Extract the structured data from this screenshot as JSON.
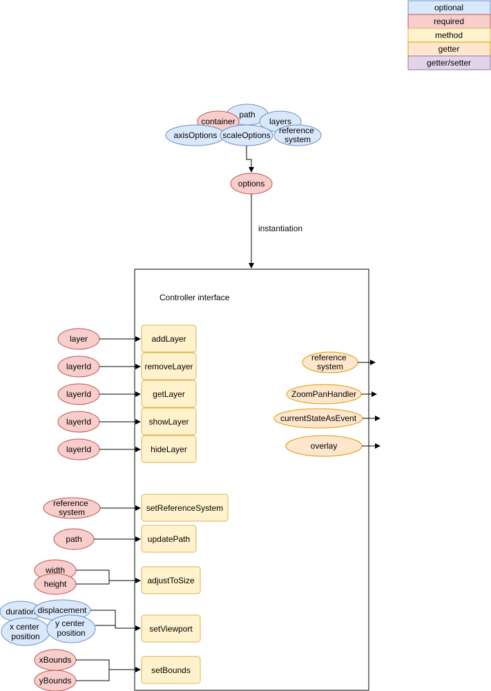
{
  "legend": [
    {
      "label": "optional",
      "kind": "optional"
    },
    {
      "label": "required",
      "kind": "required"
    },
    {
      "label": "method",
      "kind": "method"
    },
    {
      "label": "getter",
      "kind": "getter"
    },
    {
      "label": "getter/setter",
      "kind": "getter_setter"
    }
  ],
  "colors": {
    "optional": {
      "fill": "#dae8fc",
      "stroke": "#6c8ebf"
    },
    "required": {
      "fill": "#f8cecc",
      "stroke": "#b85450"
    },
    "method": {
      "fill": "#fff2cc",
      "stroke": "#d6b656"
    },
    "getter": {
      "fill": "#ffe6cc",
      "stroke": "#d79b00"
    },
    "getter_setter": {
      "fill": "#e1d5e7",
      "stroke": "#9673a6"
    }
  },
  "options_cluster": {
    "items": [
      "path",
      "container",
      "layers",
      "axisOptions",
      "scaleOptions",
      "reference system"
    ],
    "options": "options"
  },
  "instantiation_label": "instantiation",
  "controller_title": "Controller interface",
  "methods": [
    {
      "name": "addLayer",
      "inputs": [
        "layer"
      ]
    },
    {
      "name": "removeLayer",
      "inputs": [
        "layerId"
      ]
    },
    {
      "name": "getLayer",
      "inputs": [
        "layerId"
      ]
    },
    {
      "name": "showLayer",
      "inputs": [
        "layerId"
      ]
    },
    {
      "name": "hideLayer",
      "inputs": [
        "layerId"
      ]
    },
    {
      "name": "setReferenceSystem",
      "inputs": [
        "reference system"
      ]
    },
    {
      "name": "updatePath",
      "inputs": [
        "path"
      ]
    },
    {
      "name": "adjustToSize",
      "inputs": [
        "width",
        "height"
      ]
    },
    {
      "name": "setViewport",
      "inputs": [
        "duration",
        "displacement",
        "x center position",
        "y center position"
      ]
    },
    {
      "name": "setBounds",
      "inputs": [
        "xBounds",
        "yBounds"
      ]
    }
  ],
  "getters": [
    "reference system",
    "ZoomPanHandler",
    "currentStateAsEvent",
    "overlay"
  ]
}
